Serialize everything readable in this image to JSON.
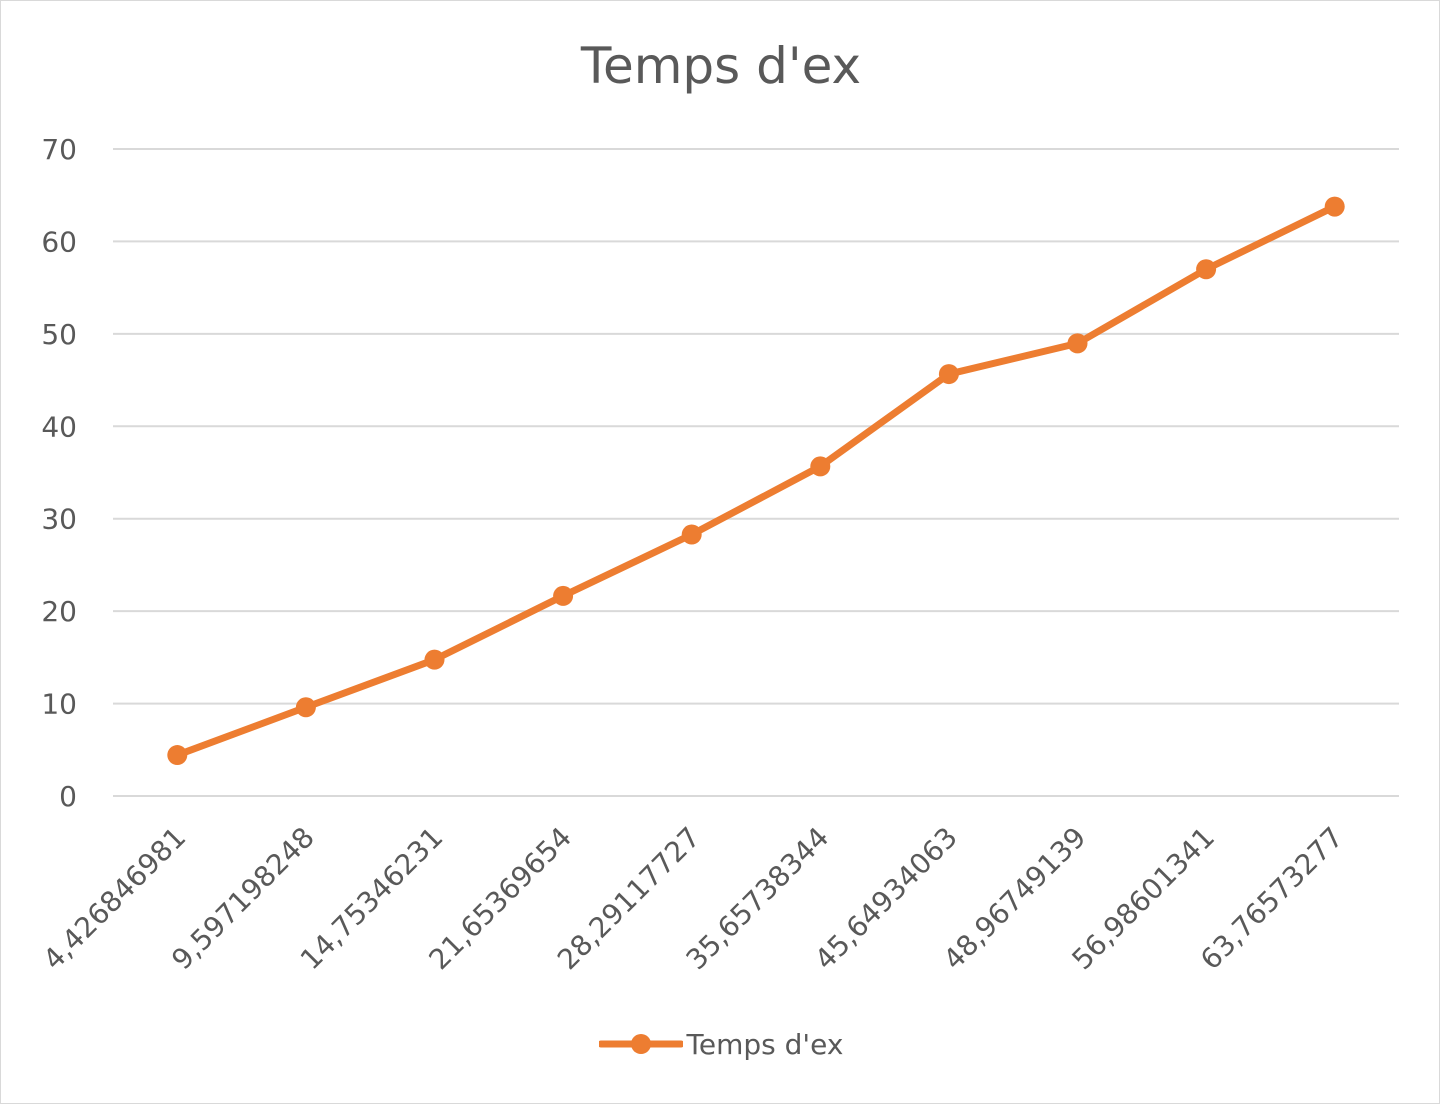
{
  "chart_data": {
    "type": "line",
    "title": "Temps d'ex",
    "xlabel": "",
    "ylabel": "",
    "categories": [
      "4,426846981",
      "9,597198248",
      "14,75346231",
      "21,65369654",
      "28,29117727",
      "35,65738344",
      "45,64934063",
      "48,96749139",
      "56,98601341",
      "63,76573277"
    ],
    "series": [
      {
        "name": "Temps d'ex",
        "values": [
          4.43,
          9.6,
          14.75,
          21.65,
          28.29,
          35.66,
          45.65,
          48.97,
          56.99,
          63.77
        ],
        "color": "#ed7d31",
        "marker": "circle"
      }
    ],
    "ylim": [
      0,
      70
    ],
    "yticks": [
      0,
      10,
      20,
      30,
      40,
      50,
      60,
      70
    ],
    "grid": "horizontal",
    "legend": "bottom",
    "colors": {
      "series": "#ed7d31",
      "grid": "#d9d9d9",
      "text": "#595959"
    }
  }
}
